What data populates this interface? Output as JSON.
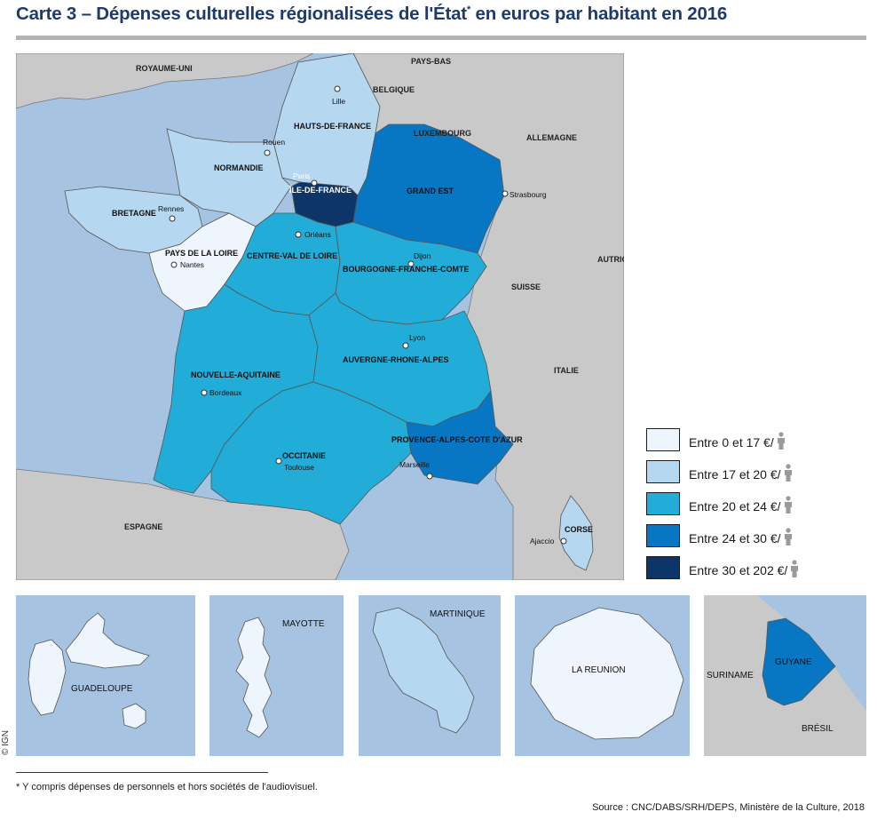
{
  "title": {
    "text": "Carte 3 – Dépenses culturelles régionalisées de l'État",
    "marker": "*",
    "suffix": " en euros par habitant en 2016"
  },
  "colors": {
    "sea": "#a7c3e2",
    "land_foreign": "#c9c9c9",
    "border": "#555555",
    "class_0_17": "#eef5fc",
    "class_17_20": "#b6d7f0",
    "class_20_24": "#22acd8",
    "class_24_30": "#0777c4",
    "class_30_202": "#0e3568",
    "person_icon": "#9a9a9a"
  },
  "map": {
    "countries": [
      "ROYAUME-UNI",
      "PAYS-BAS",
      "BELGIQUE",
      "LUXEMBOURG",
      "ALLEMAGNE",
      "AUTRICHE",
      "SUISSE",
      "ITALIE",
      "ESPAGNE"
    ],
    "regions": [
      {
        "name": "HAUTS-DE-FRANCE",
        "class": "17-20"
      },
      {
        "name": "NORMANDIE",
        "class": "17-20"
      },
      {
        "name": "ÎLE-DE-FRANCE",
        "class": "30-202"
      },
      {
        "name": "GRAND EST",
        "class": "24-30"
      },
      {
        "name": "BRETAGNE",
        "class": "17-20"
      },
      {
        "name": "PAYS DE LA LOIRE",
        "class": "0-17"
      },
      {
        "name": "CENTRE-VAL DE LOIRE",
        "class": "20-24"
      },
      {
        "name": "BOURGOGNE-FRANCHE-COMTE",
        "class": "20-24"
      },
      {
        "name": "NOUVELLE-AQUITAINE",
        "class": "20-24"
      },
      {
        "name": "AUVERGNE-RHONE-ALPES",
        "class": "20-24"
      },
      {
        "name": "OCCITANIE",
        "class": "20-24"
      },
      {
        "name": "PROVENCE-ALPES-COTE D'AZUR",
        "class": "24-30"
      },
      {
        "name": "CORSE",
        "class": "17-20"
      }
    ],
    "cities": [
      "Lille",
      "Rouen",
      "Paris",
      "Strasbourg",
      "Rennes",
      "Nantes",
      "Orléans",
      "Dijon",
      "Lyon",
      "Bordeaux",
      "Toulouse",
      "Marseille",
      "Ajaccio"
    ]
  },
  "insets": [
    {
      "name": "GUADELOUPE",
      "class": "0-17"
    },
    {
      "name": "MAYOTTE",
      "class": "0-17"
    },
    {
      "name": "MARTINIQUE",
      "class": "17-20"
    },
    {
      "name": "LA REUNION",
      "class": "0-17"
    },
    {
      "name": "GUYANE",
      "class": "24-30",
      "neighbors": [
        "SURINAME",
        "BRÉSIL"
      ]
    }
  ],
  "legend": {
    "items": [
      {
        "label": "Entre 0 et 17 €/",
        "color": "#eef5fc",
        "icon": "person-icon"
      },
      {
        "label": "Entre 17 et 20 €/",
        "color": "#b6d7f0",
        "icon": "person-icon"
      },
      {
        "label": "Entre 20 et 24 €/",
        "color": "#22acd8",
        "icon": "person-icon"
      },
      {
        "label": "Entre 24 et 30 €/",
        "color": "#0777c4",
        "icon": "person-icon"
      },
      {
        "label": "Entre 30 et 202 €/",
        "color": "#0e3568",
        "icon": "person-icon"
      }
    ]
  },
  "copyright": "© IGN",
  "footnote": "* Y compris dépenses de personnels et hors sociétés de l'audiovisuel.",
  "source": "Source : CNC/DABS/SRH/DEPS, Ministère de la Culture, 2018"
}
